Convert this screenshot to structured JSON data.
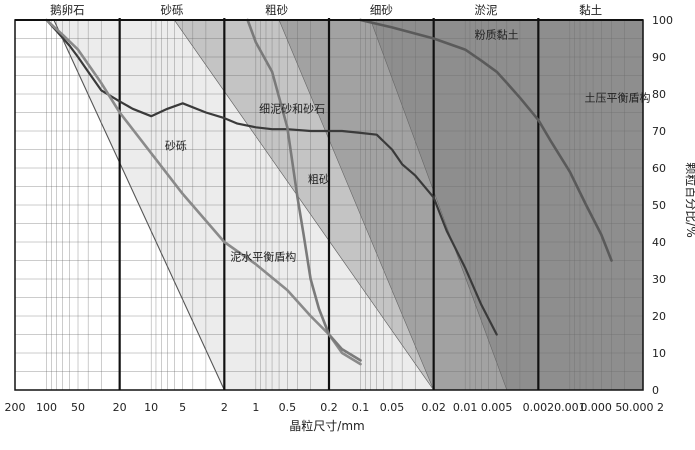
{
  "chart_data": {
    "type": "line",
    "xlabel": "晶粒尺寸/mm",
    "ylabel": "颗粒百分比/%",
    "x_scale": "log",
    "x_reversed": true,
    "xlim": [
      200,
      0.0002
    ],
    "ylim": [
      0,
      100
    ],
    "grid": true,
    "x_tick_values": [
      200,
      100,
      50,
      20,
      10,
      5,
      2,
      1,
      0.5,
      0.2,
      0.1,
      0.05,
      0.02,
      0.01,
      0.005,
      0.002,
      0.001,
      0.0005,
      0.0002
    ],
    "x_tick_labels": [
      "200",
      "100",
      "50",
      "20",
      "10",
      "5",
      "2",
      "1",
      "0.5",
      "0.2",
      "0.1",
      "0.05",
      "0.02",
      "0.01",
      "0.005",
      "0.002",
      "0.001",
      "0.000 5",
      "0.000 2"
    ],
    "y_ticks": [
      0,
      10,
      20,
      30,
      40,
      50,
      60,
      70,
      80,
      90,
      100
    ],
    "categories": [
      {
        "label": "鹅卵石",
        "from": 200,
        "to": 20
      },
      {
        "label": "砂砾",
        "from": 20,
        "to": 2
      },
      {
        "label": "粗砂",
        "from": 2,
        "to": 0.2
      },
      {
        "label": "细砂",
        "from": 0.2,
        "to": 0.02
      },
      {
        "label": "淤泥",
        "from": 0.02,
        "to": 0.002
      },
      {
        "label": "黏土",
        "from": 0.002,
        "to": 0.0002
      }
    ],
    "boundaries": [
      20,
      2,
      0.2,
      0.02,
      0.002
    ],
    "regions": [
      {
        "name": "砂砾",
        "color": "#ececec",
        "top_edge": [
          [
            85,
            100
          ],
          [
            2,
            0
          ]
        ],
        "left_edge_color": "#555555"
      },
      {
        "name": "泥水平衡盾构",
        "color": "#f7f7f7",
        "top_edge": [
          [
            6,
            100
          ],
          [
            0.02,
            0
          ]
        ]
      },
      {
        "name": "粗砂",
        "color": "#c4c4c4",
        "top_edge": [
          [
            6,
            100
          ],
          [
            0.02,
            0
          ]
        ]
      },
      {
        "name": "土压平衡盾构",
        "color": "#a2a2a2",
        "top_edge": [
          [
            0.6,
            100
          ],
          [
            0.02,
            0
          ]
        ]
      },
      {
        "name": "细砂",
        "color": "#8e8e8e",
        "top_edge": [
          [
            0.08,
            100
          ],
          [
            0.004,
            0
          ]
        ]
      }
    ],
    "series": [
      {
        "name": "细泥砂和砂石",
        "color": "#3a3a3a",
        "x": [
          100,
          80,
          60,
          50,
          40,
          30,
          20,
          15,
          10,
          7,
          5,
          3,
          2,
          1.5,
          1,
          0.7,
          0.5,
          0.3,
          0.2,
          0.15,
          0.1,
          0.07,
          0.05,
          0.04,
          0.03,
          0.02,
          0.015,
          0.01,
          0.007,
          0.005
        ],
        "y": [
          100,
          97,
          93,
          90,
          86,
          81,
          78,
          76,
          74,
          76,
          77.5,
          75,
          73.5,
          72,
          71,
          70.5,
          70.5,
          70,
          70,
          70,
          69.5,
          69,
          65,
          61,
          58,
          52,
          43,
          33,
          23,
          15
        ]
      },
      {
        "name": "砂砾",
        "color": "#8a8a8a",
        "x": [
          100,
          70,
          50,
          30,
          20,
          10,
          5,
          2,
          1,
          0.5,
          0.3,
          0.2,
          0.15,
          0.1
        ],
        "y": [
          100,
          96,
          92,
          83,
          75,
          64,
          53,
          40,
          34,
          27,
          20,
          15,
          10,
          7
        ]
      },
      {
        "name": "粗砂",
        "color": "#7a7a7a",
        "x": [
          1.2,
          1,
          0.7,
          0.5,
          0.4,
          0.35,
          0.3,
          0.25,
          0.2,
          0.15,
          0.1
        ],
        "y": [
          100,
          94,
          86,
          71,
          52,
          42,
          30,
          22,
          15,
          11,
          8
        ]
      },
      {
        "name": "粉质黏土",
        "color": "#5a5a5a",
        "x": [
          0.1,
          0.05,
          0.02,
          0.01,
          0.007,
          0.005,
          0.004,
          0.003,
          0.002,
          0.0015,
          0.001,
          0.0007,
          0.0005,
          0.0004
        ],
        "y": [
          100,
          98,
          95,
          92,
          89,
          86,
          83,
          79,
          73,
          67,
          59,
          50,
          42,
          35
        ]
      }
    ],
    "annotations": [
      {
        "text": "细泥砂和砂石",
        "x": 0.45,
        "y": 75
      },
      {
        "text": "砂砾",
        "x": 5.8,
        "y": 65
      },
      {
        "text": "粗砂",
        "x": 0.25,
        "y": 56
      },
      {
        "text": "泥水平衡盾构",
        "x": 0.85,
        "y": 35
      },
      {
        "text": "粉质黏土",
        "x": 0.005,
        "y": 95
      },
      {
        "text": "土压平衡盾构",
        "x": 0.00035,
        "y": 78
      }
    ]
  }
}
